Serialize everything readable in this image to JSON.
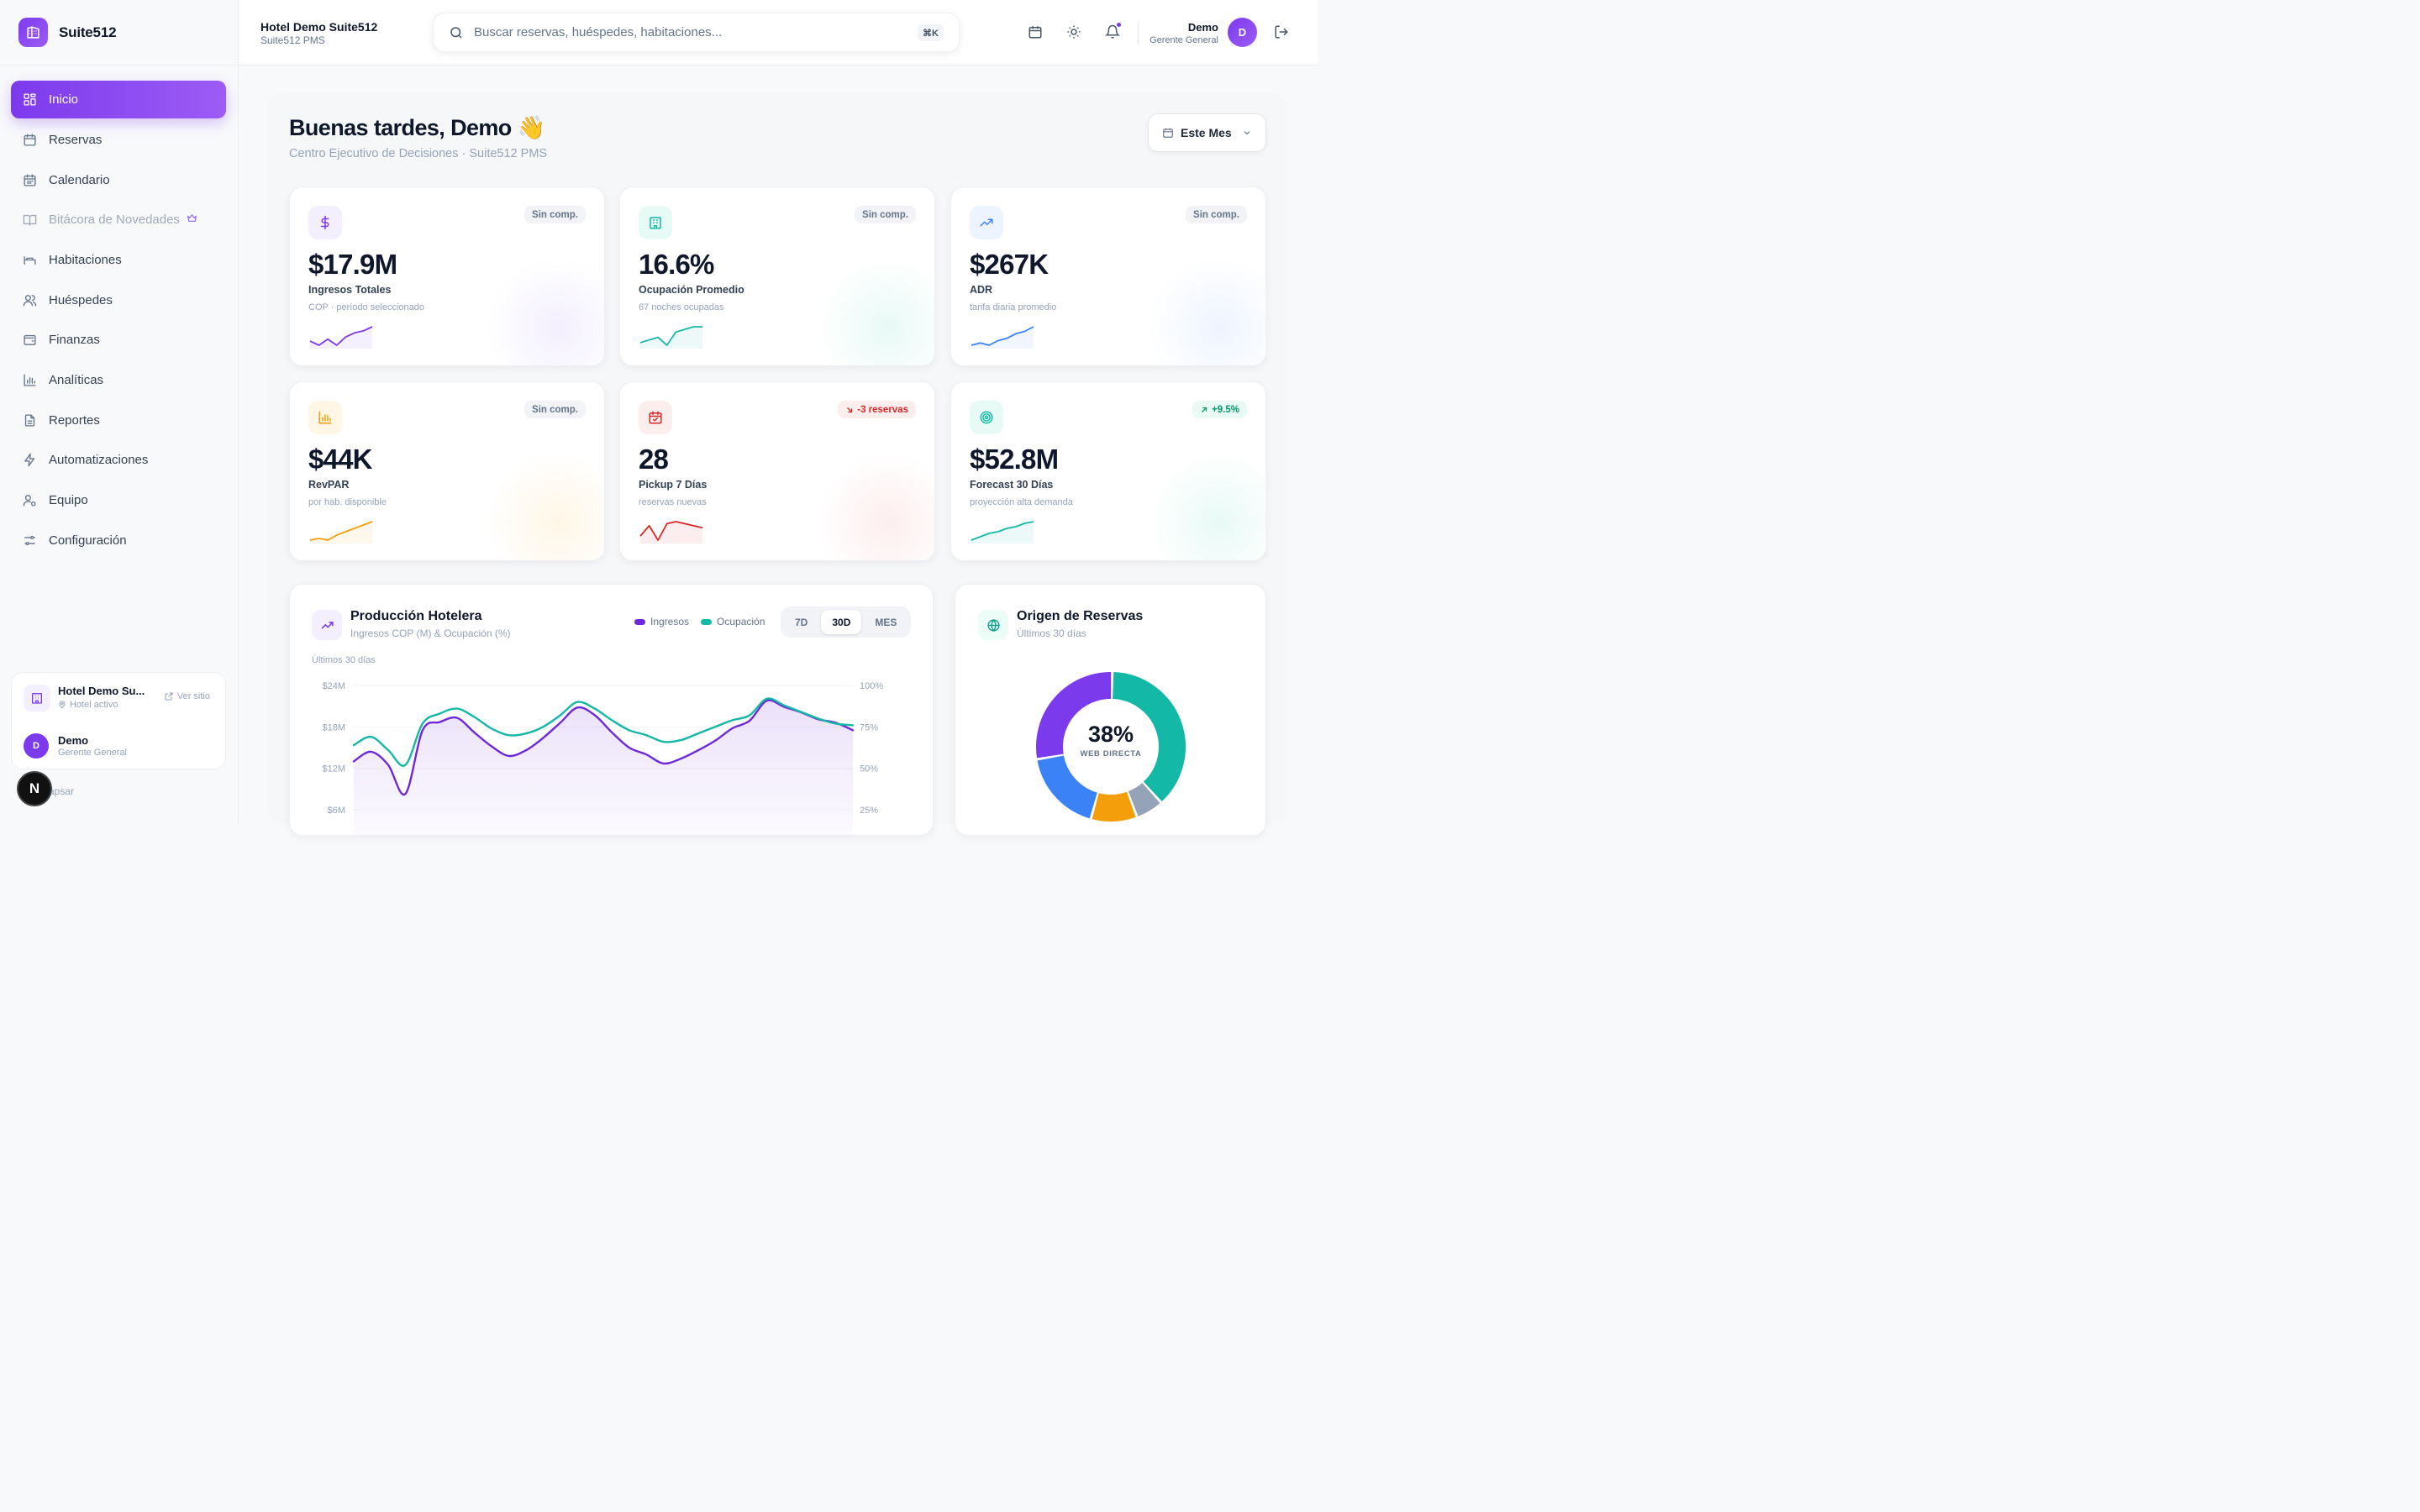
{
  "brand": {
    "name": "Suite512"
  },
  "nav": [
    {
      "label": "Inicio",
      "icon": "grid-icon",
      "active": true
    },
    {
      "label": "Reservas",
      "icon": "calendar-icon"
    },
    {
      "label": "Calendario",
      "icon": "calendar-days-icon"
    },
    {
      "label": "Bitácora de Novedades",
      "icon": "book-icon",
      "muted": true,
      "extra_icon": "crown-icon"
    },
    {
      "label": "Habitaciones",
      "icon": "bed-icon"
    },
    {
      "label": "Huéspedes",
      "icon": "users-icon"
    },
    {
      "label": "Finanzas",
      "icon": "wallet-icon"
    },
    {
      "label": "Analíticas",
      "icon": "bar-chart-icon"
    },
    {
      "label": "Reportes",
      "icon": "file-icon"
    },
    {
      "label": "Automatizaciones",
      "icon": "bolt-icon"
    },
    {
      "label": "Equipo",
      "icon": "user-cog-icon"
    },
    {
      "label": "Configuración",
      "icon": "sliders-icon"
    }
  ],
  "sidebar_hotel": {
    "name": "Hotel Demo Su...",
    "status": "Hotel activo",
    "link": "Ver sitio",
    "user_initial": "D",
    "user_name": "Demo",
    "user_role": "Gerente General",
    "collapse": "Colapsar",
    "dev_badge": "N"
  },
  "topbar": {
    "hotel_name": "Hotel Demo Suite512",
    "hotel_sub": "Suite512 PMS",
    "search_placeholder": "Buscar reservas, huéspedes, habitaciones...",
    "shortcut": "⌘K",
    "user_name": "Demo",
    "user_role": "Gerente General",
    "user_initial": "D"
  },
  "header": {
    "greeting": "Buenas tardes, Demo",
    "emoji": "👋",
    "subtitle": "Centro Ejecutivo de Decisiones · Suite512 PMS",
    "period": "Este Mes"
  },
  "kpis": [
    {
      "value": "$17.9M",
      "label": "Ingresos Totales",
      "sub": "COP · período seleccionado",
      "badge": "Sin comp.",
      "badge_type": "neutral",
      "icon": "dollar-icon",
      "color": "#7c3aed",
      "spark": [
        8,
        6,
        9,
        6,
        10,
        12,
        13,
        15
      ]
    },
    {
      "value": "16.6%",
      "label": "Ocupación Promedio",
      "sub": "67 noches ocupadas",
      "badge": "Sin comp.",
      "badge_type": "neutral",
      "icon": "building-icon",
      "color": "#14b8a6",
      "spark": [
        8,
        9,
        10,
        7,
        12,
        13,
        14,
        14
      ]
    },
    {
      "value": "$267K",
      "label": "ADR",
      "sub": "tarifa diaria promedio",
      "badge": "Sin comp.",
      "badge_type": "neutral",
      "icon": "trending-up-icon",
      "color": "#3b82f6",
      "spark": [
        6,
        7,
        6,
        8,
        9,
        11,
        12,
        14
      ]
    },
    {
      "value": "$44K",
      "label": "RevPAR",
      "sub": "por hab. disponible",
      "badge": "Sin comp.",
      "badge_type": "neutral",
      "icon": "bar-chart-icon",
      "color": "#f59e0b",
      "spark": [
        5,
        6,
        5,
        8,
        10,
        12,
        14,
        16
      ]
    },
    {
      "value": "28",
      "label": "Pickup 7 Días",
      "sub": "reservas nuevas",
      "badge": "-3 reservas",
      "badge_type": "down",
      "icon": "calendar-check-icon",
      "color": "#dc2626",
      "spark": [
        10,
        15,
        8,
        16,
        17,
        16,
        15,
        14
      ]
    },
    {
      "value": "$52.8M",
      "label": "Forecast 30 Días",
      "sub": "proyección alta demanda",
      "badge": "+9.5%",
      "badge_type": "up",
      "icon": "target-icon",
      "color": "#14b8a6",
      "spark": [
        5,
        7,
        9,
        10,
        12,
        13,
        15,
        16
      ]
    }
  ],
  "production": {
    "title": "Producción Hotelera",
    "subtitle": "Ingresos COP (M) & Ocupación (%)",
    "legend": [
      {
        "label": "Ingresos",
        "color": "#6d28d9"
      },
      {
        "label": "Ocupación",
        "color": "#14b8a6"
      }
    ],
    "ranges": [
      "7D",
      "30D",
      "MES"
    ],
    "active_range": "30D",
    "caption": "Últimos 30 días"
  },
  "origin": {
    "title": "Origen de Reservas",
    "subtitle": "Últimos 30 días",
    "center_value": "38%",
    "center_label": "WEB DIRECTA"
  },
  "chart_data": [
    {
      "type": "line",
      "title": "Producción Hotelera",
      "x": [
        1,
        2,
        3,
        4,
        5,
        6,
        7,
        8,
        9,
        10,
        11,
        12,
        13,
        14,
        15,
        16,
        17,
        18,
        19,
        20,
        21,
        22,
        23,
        24,
        25,
        26,
        27,
        28,
        29,
        30
      ],
      "y_left_ticks": [
        "$6M",
        "$12M",
        "$18M",
        "$24M"
      ],
      "y_right_ticks": [
        "25%",
        "50%",
        "75%",
        "100%"
      ],
      "ylim_left": [
        6,
        24
      ],
      "ylim_right": [
        25,
        100
      ],
      "series": [
        {
          "name": "Ingresos",
          "axis": "left",
          "color": "#6d28d9",
          "values": [
            13.0,
            14.4,
            12.5,
            8.3,
            17.5,
            18.7,
            19.3,
            17.2,
            15.2,
            13.8,
            14.6,
            16.4,
            18.6,
            20.8,
            19.7,
            17.2,
            15.0,
            14.0,
            12.7,
            13.4,
            14.6,
            16.0,
            17.8,
            18.9,
            21.8,
            20.9,
            20.1,
            19.1,
            18.6,
            17.5
          ]
        },
        {
          "name": "Ocupación",
          "axis": "right",
          "color": "#14b8a6",
          "values": [
            64,
            69,
            61,
            52,
            77,
            83,
            86,
            81,
            74,
            70,
            71,
            75,
            82,
            90,
            86,
            79,
            73,
            70,
            66,
            67,
            71,
            75,
            79,
            82,
            92,
            88,
            84,
            80,
            77,
            76
          ]
        }
      ]
    },
    {
      "type": "pie",
      "title": "Origen de Reservas",
      "slices": [
        {
          "label": "Web Directa",
          "value": 38,
          "color": "#14b8a6"
        },
        {
          "label": "",
          "value": 6,
          "color": "#94a3b8"
        },
        {
          "label": "",
          "value": 10,
          "color": "#f59e0b"
        },
        {
          "label": "",
          "value": 18,
          "color": "#3b82f6"
        },
        {
          "label": "",
          "value": 28,
          "color": "#7c3aed"
        }
      ]
    }
  ]
}
